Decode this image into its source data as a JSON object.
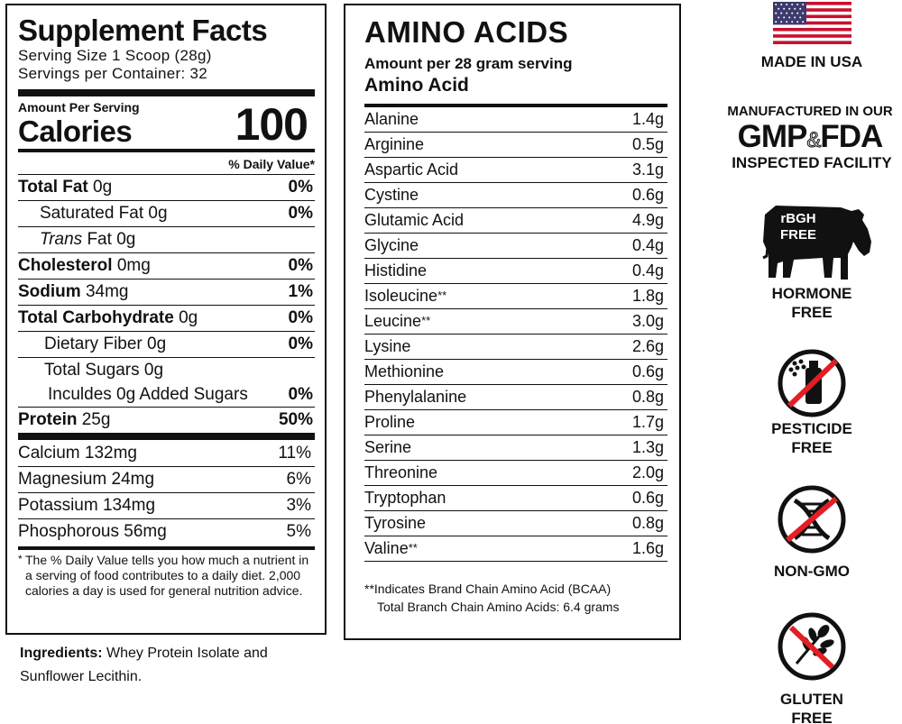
{
  "supplement_facts": {
    "title": "Supplement Facts",
    "serving_size": "Serving Size 1 Scoop (28g)",
    "servings_per_container": "Servings per Container: 32",
    "amount_per_serving": "Amount Per Serving",
    "calories_label": "Calories",
    "calories_value": "100",
    "daily_value_header": "% Daily Value*",
    "nutrients": [
      {
        "name": "Total Fat",
        "amount": "0g",
        "dv": "0%"
      },
      {
        "name": "Saturated Fat",
        "amount": "0g",
        "dv": "0%"
      },
      {
        "prefix": "Trans",
        "name": "Fat",
        "amount": "0g",
        "dv": ""
      },
      {
        "name": "Cholesterol",
        "amount": "0mg",
        "dv": "0%"
      },
      {
        "name": "Sodium",
        "amount": "34mg",
        "dv": "1%"
      },
      {
        "name": "Total Carbohydrate",
        "amount": "0g",
        "dv": "0%"
      },
      {
        "name": "Dietary Fiber",
        "amount": "0g",
        "dv": "0%"
      },
      {
        "name": "Total Sugars",
        "amount": "0g",
        "dv": ""
      },
      {
        "name": "Inculdes 0g Added Sugars",
        "amount": "",
        "dv": "0%"
      },
      {
        "name": "Protein",
        "amount": "25g",
        "dv": "50%"
      }
    ],
    "minerals": [
      {
        "name": "Calcium",
        "amount": "132mg",
        "dv": "11%"
      },
      {
        "name": "Magnesium",
        "amount": "24mg",
        "dv": "6%"
      },
      {
        "name": "Potassium",
        "amount": "134mg",
        "dv": "3%"
      },
      {
        "name": "Phosphorous",
        "amount": "56mg",
        "dv": "5%"
      }
    ],
    "footnote_mark": "*",
    "footnote": "The % Daily Value tells you how much a nutrient in a serving of food contributes to a daily diet. 2,000 calories a day is used for general nutrition advice."
  },
  "ingredients": {
    "label": "Ingredients:",
    "text": "Whey Protein Isolate and Sunflower Lecithin."
  },
  "amino_acids": {
    "title": "AMINO ACIDS",
    "subtitle": "Amount per 28 gram serving",
    "column_header": "Amino Acid",
    "rows": [
      {
        "name": "Alanine",
        "mark": "",
        "amount": "1.4g"
      },
      {
        "name": "Arginine",
        "mark": "",
        "amount": "0.5g"
      },
      {
        "name": "Aspartic Acid",
        "mark": "",
        "amount": "3.1g"
      },
      {
        "name": "Cystine",
        "mark": "",
        "amount": "0.6g"
      },
      {
        "name": "Glutamic Acid",
        "mark": "",
        "amount": "4.9g"
      },
      {
        "name": "Glycine",
        "mark": "",
        "amount": "0.4g"
      },
      {
        "name": "Histidine",
        "mark": "",
        "amount": "0.4g"
      },
      {
        "name": "Isoleucine",
        "mark": "**",
        "amount": "1.8g"
      },
      {
        "name": "Leucine",
        "mark": "**",
        "amount": "3.0g"
      },
      {
        "name": "Lysine",
        "mark": "",
        "amount": "2.6g"
      },
      {
        "name": "Methionine",
        "mark": "",
        "amount": "0.6g"
      },
      {
        "name": "Phenylalanine",
        "mark": "",
        "amount": "0.8g"
      },
      {
        "name": "Proline",
        "mark": "",
        "amount": "1.7g"
      },
      {
        "name": "Serine",
        "mark": "",
        "amount": "1.3g"
      },
      {
        "name": "Threonine",
        "mark": "",
        "amount": "2.0g"
      },
      {
        "name": "Tryptophan",
        "mark": "",
        "amount": "0.6g"
      },
      {
        "name": "Tyrosine",
        "mark": "",
        "amount": "0.8g"
      },
      {
        "name": "Valine",
        "mark": "**",
        "amount": "1.6g"
      }
    ],
    "footnote_line1": "**Indicates Brand Chain Amino Acid (BCAA)",
    "footnote_line2": "Total Branch Chain Amino Acids: 6.4 grams"
  },
  "badges": {
    "made_in_usa": "MADE IN USA",
    "gmp_line1": "MANUFACTURED IN OUR",
    "gmp_gmp": "GMP",
    "gmp_amp": "&",
    "gmp_fda": "FDA",
    "gmp_line3": "INSPECTED FACILITY",
    "cow_text_1": "rBGH",
    "cow_text_2": "FREE",
    "hormone_1": "HORMONE",
    "hormone_2": "FREE",
    "pesticide_1": "PESTICIDE",
    "pesticide_2": "FREE",
    "non_gmo": "NON-GMO",
    "gluten_1": "GLUTEN",
    "gluten_2": "FREE"
  },
  "colors": {
    "ink": "#111111",
    "prohibited_red": "#e31e24",
    "flag_red": "#c8102e",
    "flag_blue": "#3c3b6e"
  }
}
